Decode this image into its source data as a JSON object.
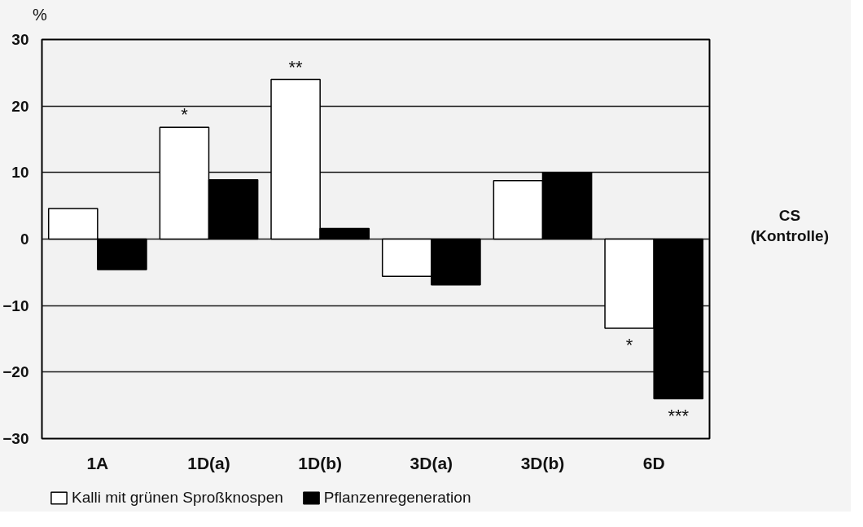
{
  "chart_data": {
    "type": "bar",
    "ylabel": "%",
    "categories": [
      "1A",
      "1D(a)",
      "1D(b)",
      "3D(a)",
      "3D(b)",
      "6D"
    ],
    "series": [
      {
        "name": "Kalli mit grünen Sproßknospen",
        "color": "#ffffff",
        "values": [
          4.6,
          16.8,
          24,
          -5.6,
          8.8,
          -13.4
        ]
      },
      {
        "name": "Pflanzenregeneration",
        "color": "#000000",
        "values": [
          -4.6,
          8.9,
          1.6,
          -6.9,
          10,
          -24
        ]
      }
    ],
    "ylim": [
      -30,
      30
    ],
    "yticks": [
      -30,
      -20,
      -10,
      0,
      10,
      20,
      30
    ],
    "grid": "y",
    "legend": "bottom",
    "annotations": [
      {
        "text": "*",
        "x": "1D(a)",
        "y": 16.8
      },
      {
        "text": "**",
        "x": "1D(b)",
        "y": 24
      },
      {
        "text": "*",
        "x": "6D",
        "y": -13.4
      },
      {
        "text": "***",
        "x": "6D",
        "y": -24
      },
      "CS\n(Kontrolle)"
    ]
  }
}
